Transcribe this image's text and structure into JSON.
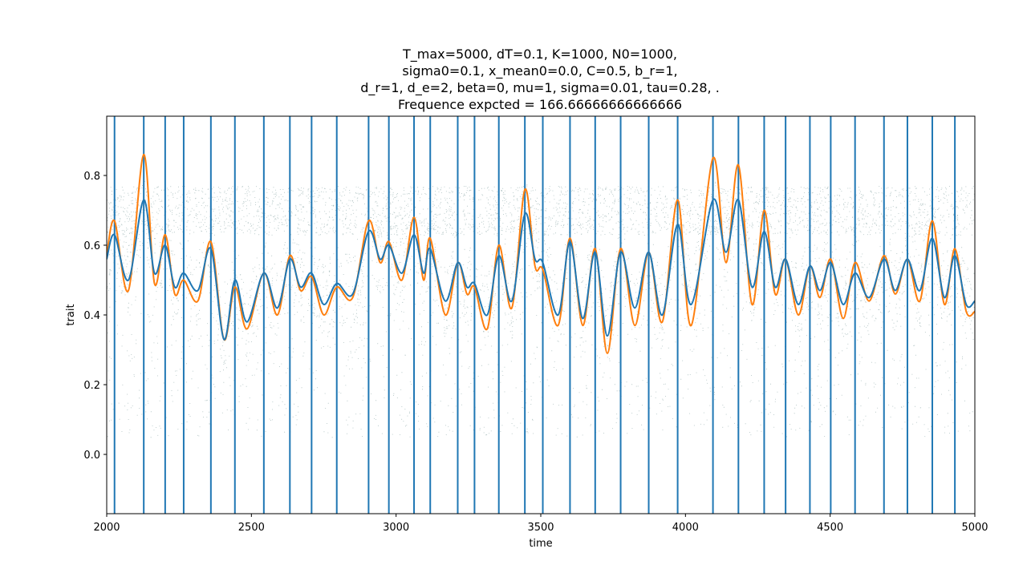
{
  "chart_data": {
    "type": "line",
    "title_lines": [
      "T_max=5000, dT=0.1, K=1000, N0=1000,",
      "sigma0=0.1, x_mean0=0.0, C=0.5, b_r=1,",
      "d_r=1, d_e=2, beta=0, mu=1, sigma=0.01, tau=0.28, .",
      "Frequence expcted = 166.66666666666666"
    ],
    "xlabel": "time",
    "ylabel": "trait",
    "xlim": [
      2000,
      5000
    ],
    "ylim": [
      -0.17,
      0.97
    ],
    "x_ticks": [
      2000,
      2500,
      3000,
      3500,
      4000,
      4500,
      5000
    ],
    "y_ticks": [
      0.0,
      0.2,
      0.4,
      0.6,
      0.8
    ],
    "y_tick_labels": [
      "0.0",
      "0.2",
      "0.4",
      "0.6",
      "0.8"
    ],
    "grid": false,
    "colors": {
      "vlines": "#1f77b4",
      "blue_series": "#1f77b4",
      "orange_series": "#ff7f0e",
      "scatter": "#1b4f4f"
    },
    "vlines": [
      2027,
      2128,
      2202,
      2266,
      2360,
      2443,
      2543,
      2633,
      2708,
      2795,
      2905,
      2975,
      3062,
      3118,
      3213,
      3271,
      3355,
      3445,
      3507,
      3601,
      3688,
      3776,
      3873,
      3973,
      4095,
      4183,
      4272,
      4346,
      4430,
      4502,
      4586,
      4686,
      4767,
      4853,
      4931
    ],
    "series": [
      {
        "x": [
          2000,
          2027,
          2075,
          2128,
          2165,
          2202,
          2235,
          2266,
          2315,
          2360,
          2405,
          2443,
          2485,
          2543,
          2590,
          2633,
          2670,
          2708,
          2750,
          2795,
          2850,
          2905,
          2945,
          2975,
          3020,
          3062,
          3095,
          3118,
          3170,
          3213,
          3245,
          3271,
          3315,
          3355,
          3400,
          3445,
          3480,
          3507,
          3560,
          3601,
          3645,
          3688,
          3730,
          3776,
          3825,
          3873,
          3920,
          3973,
          4020,
          4095,
          4140,
          4183,
          4230,
          4272,
          4310,
          4346,
          4390,
          4430,
          4465,
          4502,
          4545,
          4586,
          4635,
          4686,
          4725,
          4767,
          4810,
          4853,
          4895,
          4931,
          4970,
          5000
        ],
        "y": [
          0.56,
          0.63,
          0.5,
          0.73,
          0.52,
          0.6,
          0.48,
          0.52,
          0.47,
          0.59,
          0.33,
          0.5,
          0.38,
          0.52,
          0.42,
          0.56,
          0.48,
          0.52,
          0.43,
          0.49,
          0.46,
          0.64,
          0.56,
          0.6,
          0.52,
          0.63,
          0.52,
          0.59,
          0.44,
          0.55,
          0.48,
          0.49,
          0.4,
          0.57,
          0.44,
          0.69,
          0.56,
          0.55,
          0.4,
          0.61,
          0.39,
          0.58,
          0.34,
          0.58,
          0.42,
          0.58,
          0.4,
          0.66,
          0.43,
          0.73,
          0.58,
          0.73,
          0.48,
          0.64,
          0.48,
          0.56,
          0.43,
          0.54,
          0.47,
          0.55,
          0.43,
          0.52,
          0.45,
          0.56,
          0.47,
          0.56,
          0.47,
          0.62,
          0.45,
          0.57,
          0.43,
          0.44
        ]
      },
      {
        "x": [
          2000,
          2027,
          2075,
          2128,
          2165,
          2202,
          2235,
          2266,
          2315,
          2360,
          2405,
          2443,
          2485,
          2543,
          2590,
          2633,
          2670,
          2708,
          2750,
          2795,
          2850,
          2905,
          2945,
          2975,
          3020,
          3062,
          3095,
          3118,
          3170,
          3213,
          3245,
          3271,
          3315,
          3355,
          3400,
          3445,
          3480,
          3507,
          3560,
          3601,
          3645,
          3688,
          3730,
          3776,
          3825,
          3873,
          3920,
          3973,
          4020,
          4095,
          4140,
          4183,
          4230,
          4272,
          4310,
          4346,
          4390,
          4430,
          4465,
          4502,
          4545,
          4586,
          4635,
          4686,
          4725,
          4767,
          4810,
          4853,
          4895,
          4931,
          4970,
          5000
        ],
        "y": [
          0.57,
          0.67,
          0.47,
          0.86,
          0.49,
          0.63,
          0.46,
          0.5,
          0.44,
          0.61,
          0.33,
          0.48,
          0.36,
          0.52,
          0.4,
          0.57,
          0.47,
          0.51,
          0.4,
          0.48,
          0.45,
          0.67,
          0.55,
          0.61,
          0.5,
          0.68,
          0.5,
          0.62,
          0.4,
          0.55,
          0.46,
          0.48,
          0.36,
          0.6,
          0.42,
          0.76,
          0.54,
          0.53,
          0.37,
          0.62,
          0.37,
          0.59,
          0.29,
          0.59,
          0.37,
          0.58,
          0.38,
          0.73,
          0.37,
          0.85,
          0.55,
          0.83,
          0.43,
          0.7,
          0.46,
          0.56,
          0.4,
          0.54,
          0.45,
          0.56,
          0.39,
          0.55,
          0.44,
          0.57,
          0.46,
          0.56,
          0.44,
          0.67,
          0.43,
          0.59,
          0.41,
          0.41
        ]
      }
    ]
  }
}
